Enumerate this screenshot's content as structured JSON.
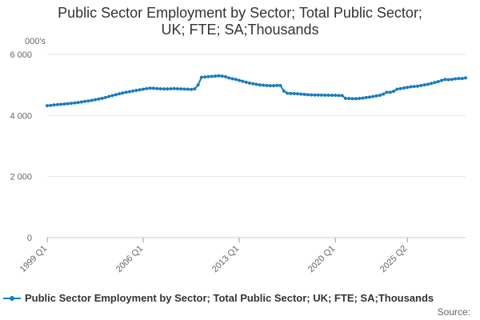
{
  "chart_data": {
    "type": "line",
    "title_lines": [
      "Public Sector Employment by Sector; Total Public Sector;",
      "UK; FTE; SA;Thousands"
    ],
    "unit_label": "000's",
    "ylim": [
      0,
      6000
    ],
    "yticks": [
      {
        "value": 0,
        "label": "0"
      },
      {
        "value": 2000,
        "label": "2 000"
      },
      {
        "value": 4000,
        "label": "4 000"
      },
      {
        "value": 6000,
        "label": "6 000"
      }
    ],
    "xticks": [
      "1999 Q1",
      "2006 Q1",
      "2013 Q1",
      "2020 Q1",
      "2025 Q2"
    ],
    "grid": true,
    "legend_position": "bottom",
    "series": [
      {
        "name": "Public Sector Employment by Sector; Total Public Sector; UK; FTE; SA;Thousands",
        "color": "#1a7bbd",
        "start": "1999 Q1",
        "values": [
          4320,
          4330,
          4345,
          4355,
          4365,
          4375,
          4385,
          4400,
          4410,
          4425,
          4440,
          4460,
          4475,
          4495,
          4515,
          4540,
          4560,
          4590,
          4620,
          4650,
          4680,
          4710,
          4735,
          4760,
          4780,
          4800,
          4820,
          4840,
          4860,
          4880,
          4895,
          4890,
          4880,
          4875,
          4870,
          4870,
          4875,
          4880,
          4875,
          4870,
          4865,
          4860,
          4855,
          4870,
          5000,
          5250,
          5260,
          5270,
          5280,
          5290,
          5300,
          5290,
          5270,
          5230,
          5200,
          5180,
          5150,
          5120,
          5090,
          5060,
          5040,
          5020,
          5000,
          4990,
          4980,
          4975,
          4975,
          4985,
          4980,
          4800,
          4730,
          4720,
          4715,
          4710,
          4700,
          4690,
          4680,
          4675,
          4670,
          4670,
          4668,
          4665,
          4663,
          4660,
          4660,
          4655,
          4650,
          4560,
          4555,
          4550,
          4550,
          4560,
          4570,
          4590,
          4600,
          4620,
          4640,
          4660,
          4700,
          4760,
          4760,
          4790,
          4860,
          4880,
          4900,
          4920,
          4940,
          4950,
          4960,
          4980,
          5000,
          5020,
          5050,
          5080,
          5110,
          5150,
          5180,
          5170,
          5180,
          5200,
          5210,
          5210,
          5230
        ]
      }
    ]
  },
  "source_label": "Source:"
}
